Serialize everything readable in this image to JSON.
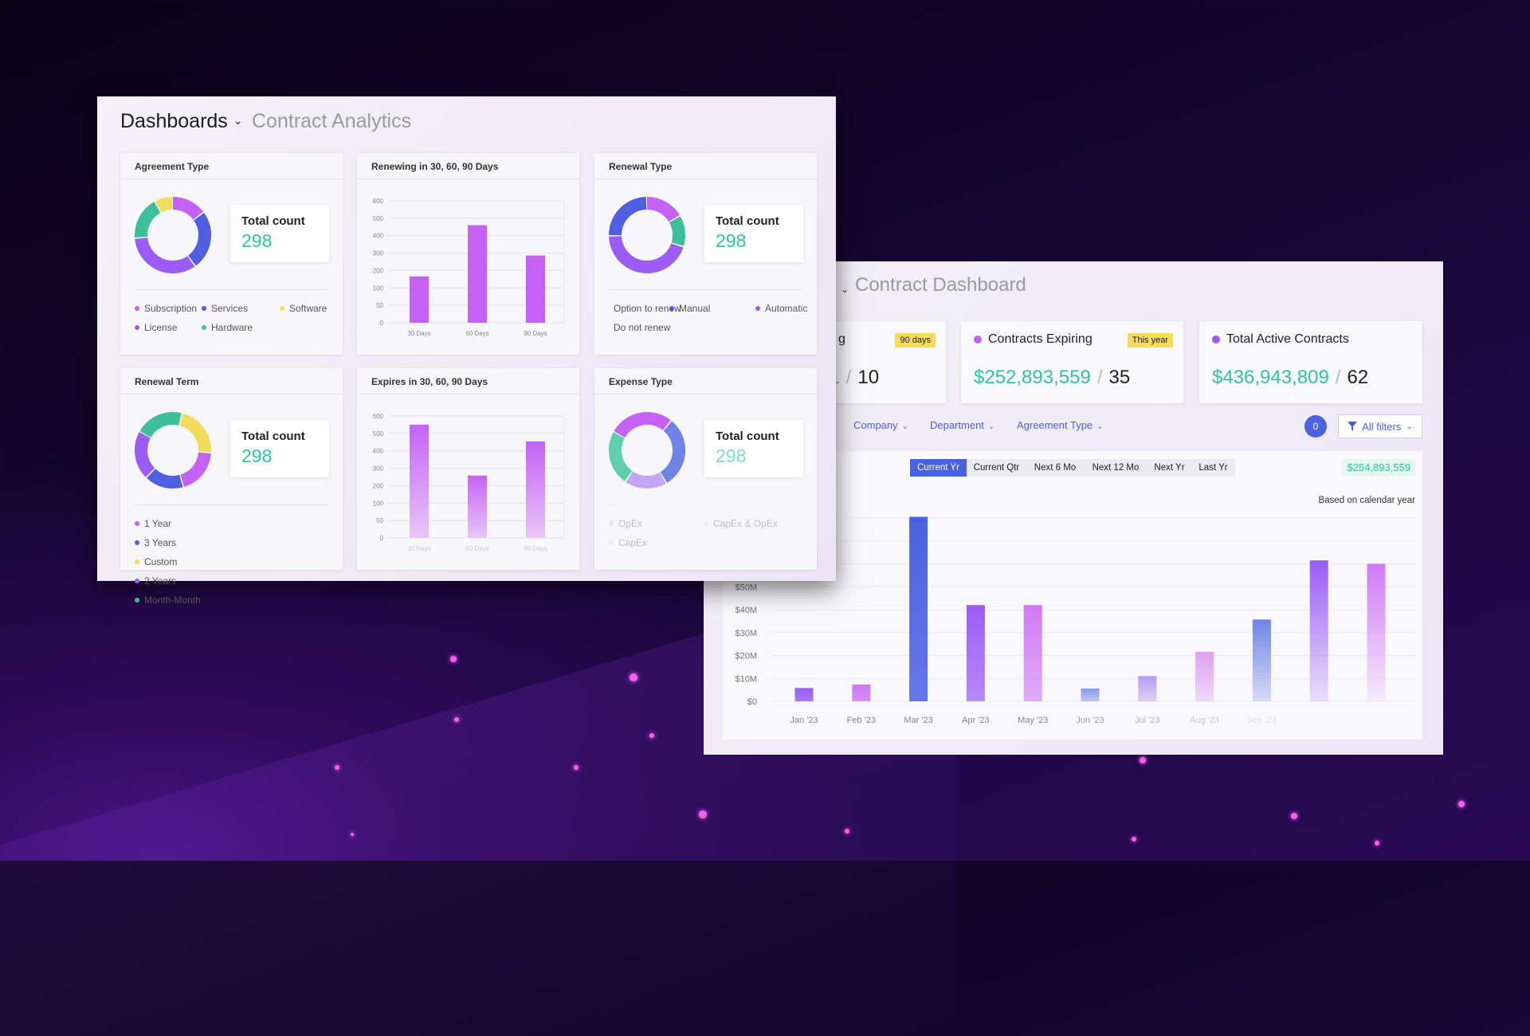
{
  "front": {
    "title": "Dashboards",
    "subtitle": "Contract Analytics",
    "cards": [
      {
        "title": "Agreement Type",
        "type": "donut",
        "total_label": "Total count",
        "total_value": "298",
        "segments": [
          {
            "name": "Subscription",
            "value": 45,
            "color": "#c462f5"
          },
          {
            "name": "Services",
            "value": 75,
            "color": "#4f5fe0"
          },
          {
            "name": "License",
            "value": 100,
            "color": "#9b5cf6"
          },
          {
            "name": "Hardware",
            "value": 55,
            "color": "#3dbf9a"
          },
          {
            "name": "Software",
            "value": 23,
            "color": "#f2dc5d"
          }
        ],
        "legend": [
          {
            "label": "Subscription",
            "color": "#c462f5"
          },
          {
            "label": "Services",
            "color": "#4f5fe0"
          },
          {
            "label": "Software",
            "color": "#f2dc5d"
          },
          {
            "label": "License",
            "color": "#9b5cf6"
          },
          {
            "label": "Hardware",
            "color": "#3dbf9a"
          }
        ]
      },
      {
        "title": "Renewing in 30, 60, 90 Days",
        "type": "bar",
        "ticks": [
          0,
          50,
          100,
          200,
          300,
          400,
          500,
          600
        ],
        "categories": [
          "30 Days",
          "60 Days",
          "90 Days"
        ],
        "values": [
          166,
          460,
          286
        ],
        "color": "#c462f5"
      },
      {
        "title": "Renewal Type",
        "type": "donut",
        "total_label": "Total count",
        "total_value": "298",
        "segments": [
          {
            "name": "Option to renew",
            "value": 50,
            "color": "#c462f5"
          },
          {
            "name": "Do not renew",
            "value": 40,
            "color": "#3dbf9a"
          },
          {
            "name": "Automatic",
            "value": 133,
            "color": "#9b5cf6"
          },
          {
            "name": "Manual",
            "value": 75,
            "color": "#4f5fe0"
          }
        ],
        "legend": [
          {
            "label": "Option to renew",
            "color": "#c462f5"
          },
          {
            "label": "Manual",
            "color": "#4f5fe0"
          },
          {
            "label": "Automatic",
            "color": "#9b5cf6"
          },
          {
            "label": "Do not renew",
            "color": "#3dbf9a"
          }
        ]
      },
      {
        "title": "Renewal Term",
        "type": "donut",
        "total_label": "Total count",
        "total_value": "298",
        "start_deg": -60,
        "segments": [
          {
            "name": "Month-Month",
            "value": 62,
            "color": "#3dbf9a"
          },
          {
            "name": "Custom",
            "value": 66,
            "color": "#f2dc5d"
          },
          {
            "name": "1 Year",
            "value": 58,
            "color": "#c462f5"
          },
          {
            "name": "3 Years",
            "value": 50,
            "color": "#4f5fe0"
          },
          {
            "name": "2 Years",
            "value": 62,
            "color": "#9b5cf6"
          }
        ],
        "legend": [
          {
            "label": "1 Year",
            "color": "#c462f5"
          },
          {
            "label": "3 Years",
            "color": "#4f5fe0"
          },
          {
            "label": "Custom",
            "color": "#f2dc5d"
          },
          {
            "label": "2 Years",
            "color": "#9b5cf6"
          },
          {
            "label": "Month-Month",
            "color": "#3dbf9a"
          }
        ]
      },
      {
        "title": "Expires in 30, 60, 90 Days",
        "type": "bar",
        "ticks": [
          0,
          50,
          100,
          200,
          300,
          400,
          500,
          600
        ],
        "categories": [
          "30 Days",
          "60 Days",
          "90 Days"
        ],
        "values": [
          550,
          258,
          454
        ],
        "color": "#c462f5"
      },
      {
        "title": "Expense Type",
        "type": "donut",
        "total_label": "Total count",
        "total_value": "298",
        "start_deg": -60,
        "segments": [
          {
            "name": "OpEx",
            "value": 83,
            "color": "#c462f5"
          },
          {
            "name": "CapEx & OpEx",
            "value": 91,
            "color": "#6f84e6"
          },
          {
            "name": "CapEx",
            "value": 54,
            "color": "#c3a6f5"
          },
          {
            "name": "",
            "value": 70,
            "color": "#5fcfae"
          }
        ],
        "legend": [
          {
            "label": "OpEx",
            "color": "#d9b8f5"
          },
          {
            "label": "CapEx & OpEx",
            "color": "#d6cff2"
          },
          {
            "label": "CapEx",
            "color": "#ddd2f2"
          }
        ]
      }
    ]
  },
  "back": {
    "title": "Contract Dashboard",
    "stats": [
      {
        "label": "g",
        "badge": "90 days",
        "amount": "01",
        "count": "10",
        "dot": "#c462f5"
      },
      {
        "label": "Contracts Expiring",
        "badge": "This year",
        "amount": "$252,893,559",
        "count": "35",
        "dot": "#c462f5"
      },
      {
        "label": "Total Active Contracts",
        "amount": "$436,943,809",
        "count": "62",
        "dot": "#9b5cf6"
      }
    ],
    "filters": [
      "Company",
      "Department",
      "Agreement Type"
    ],
    "filter_count": "0",
    "all_filters": "All filters",
    "periods": [
      {
        "label": "Current Yr",
        "active": true
      },
      {
        "label": "Current Qtr"
      },
      {
        "label": "Next 6 Mo"
      },
      {
        "label": "Next 12 Mo"
      },
      {
        "label": "Next Yr"
      },
      {
        "label": "Last Yr"
      }
    ],
    "period_total": "$254,893,559",
    "basis_note": "Based on calendar year"
  },
  "chart_data": {
    "type": "bar",
    "categories": [
      "Jan '23",
      "Feb '23",
      "Mar '23",
      "Apr '23",
      "May '23",
      "Jun '23",
      "Jul '23",
      "Aug '23",
      "Sep '23",
      "",
      ""
    ],
    "values": [
      5.8,
      7.3,
      80.5,
      42,
      42,
      5.6,
      11,
      21.6,
      35.7,
      61.5,
      60
    ],
    "colors": [
      "#9b5cf6",
      "#d07af5",
      "#4a62e0",
      "#9b5cf6",
      "#d07af5",
      "#8a9ae8",
      "#b79cf3",
      "#dfa0f0",
      "#6f84e6",
      "#9b5cf6",
      "#d07af5"
    ],
    "ylim": [
      0,
      80
    ],
    "yticks": [
      "$0",
      "$10M",
      "$20M",
      "$30M",
      "$40M",
      "$50M"
    ],
    "grid": true,
    "xlabel": "",
    "ylabel": ""
  }
}
